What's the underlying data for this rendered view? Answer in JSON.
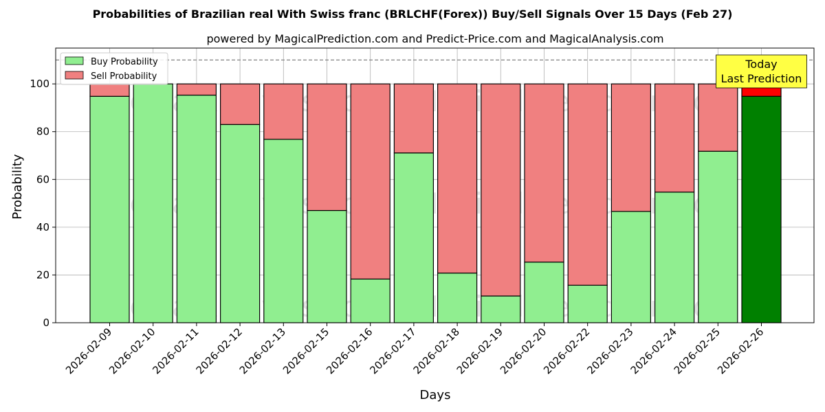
{
  "chart_data": {
    "type": "bar",
    "stacked": true,
    "title": "Probabilities of Brazilian real With Swiss franc (BRLCHF(Forex)) Buy/Sell Signals Over 15 Days (Feb 27)",
    "subtitle": "powered by MagicalPrediction.com and Predict-Price.com and MagicalAnalysis.com",
    "xlabel": "Days",
    "ylabel": "Probability",
    "ylim": [
      0,
      115
    ],
    "yticks": [
      0,
      20,
      40,
      60,
      80,
      100
    ],
    "grid": true,
    "legend_placement": "top-left",
    "reference_line": 110,
    "categories": [
      "2026-02-09",
      "2026-02-10",
      "2026-02-11",
      "2026-02-12",
      "2026-02-13",
      "2026-02-15",
      "2026-02-16",
      "2026-02-17",
      "2026-02-18",
      "2026-02-19",
      "2026-02-20",
      "2026-02-22",
      "2026-02-23",
      "2026-02-24",
      "2026-02-25",
      "2026-02-26"
    ],
    "series": [
      {
        "name": "Buy Probability",
        "color": "#90ee90",
        "highlight_color": "#008000",
        "values": [
          94.8,
          100,
          95.3,
          83.0,
          76.8,
          47.0,
          18.3,
          71.1,
          20.8,
          11.2,
          25.4,
          15.7,
          46.6,
          54.7,
          71.8,
          94.8
        ]
      },
      {
        "name": "Sell Probability",
        "color": "#f08080",
        "highlight_color": "#ff0000",
        "values": [
          5.2,
          0,
          4.7,
          17.0,
          23.2,
          53.0,
          81.7,
          28.9,
          79.2,
          88.8,
          74.6,
          84.3,
          53.4,
          45.3,
          28.2,
          5.2
        ]
      }
    ],
    "annotation": {
      "lines": [
        "Today",
        "Last Prediction"
      ],
      "category": "2026-02-26",
      "color": "#ffff44"
    },
    "watermarks": [
      "MagicalAnalysis.com",
      "MagicalPrediction.com"
    ]
  }
}
